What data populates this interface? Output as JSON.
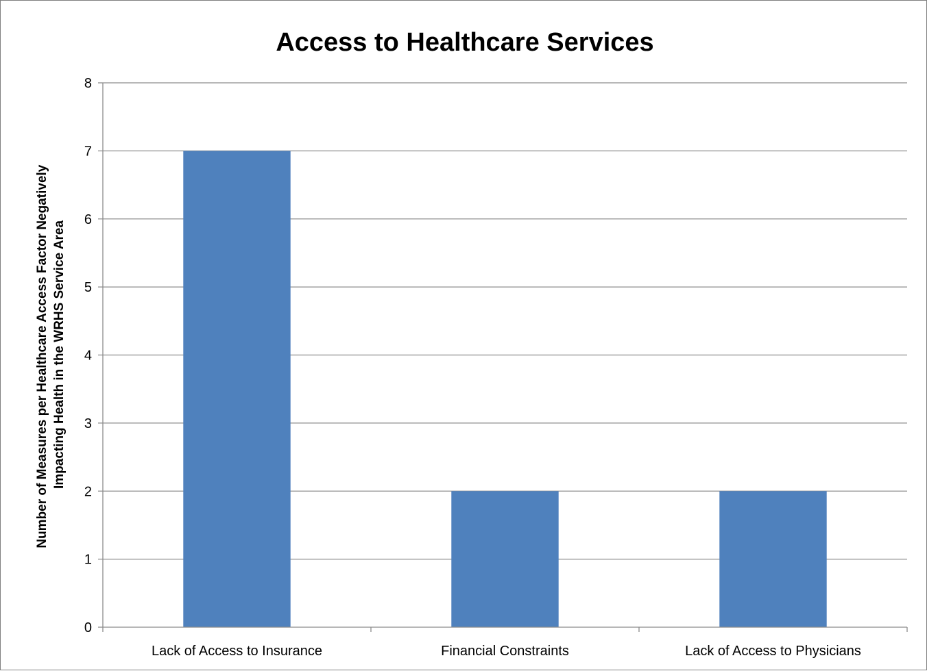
{
  "chart_data": {
    "type": "bar",
    "title": "Access to Healthcare Services",
    "ylabel_lines": [
      "Number of Measures per Healthcare Access Factor Negatively",
      "Impacting Health in the WRHS Service Area"
    ],
    "xlabel": "",
    "categories": [
      "Lack of Access to Insurance",
      "Financial Constraints",
      "Lack of Access to Physicians"
    ],
    "values": [
      7,
      2,
      2
    ],
    "ylim": [
      0,
      8
    ],
    "yticks": [
      "0",
      "1",
      "2",
      "3",
      "4",
      "5",
      "6",
      "7",
      "8"
    ],
    "grid": true,
    "legend": "none",
    "bar_color": "#4f81bd"
  }
}
